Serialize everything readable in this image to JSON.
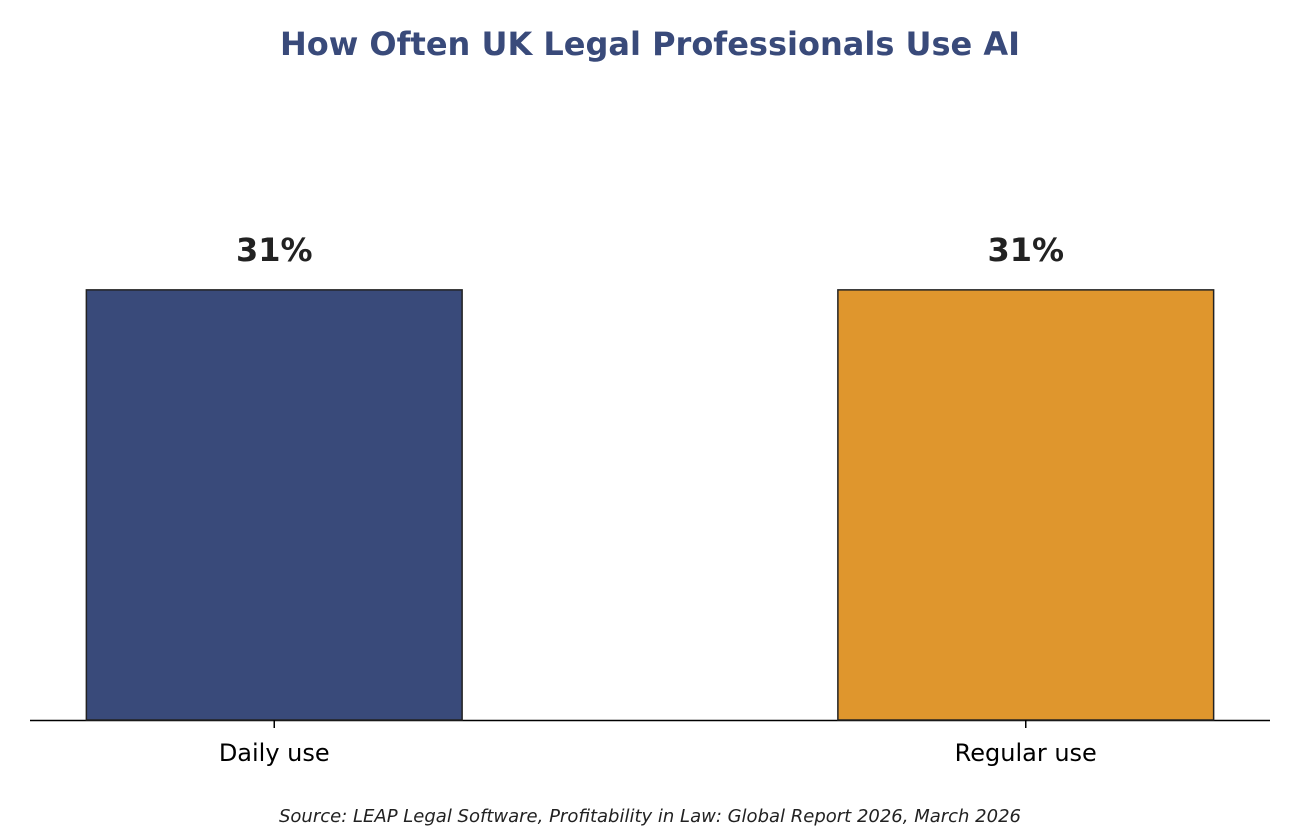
{
  "chart_data": {
    "type": "bar",
    "title": "How Often UK Legal Professionals Use AI",
    "categories": [
      "Daily use",
      "Regular use"
    ],
    "values": [
      31,
      31
    ],
    "value_labels": [
      "31%",
      "31%"
    ],
    "colors": [
      "#394a7a",
      "#df962d"
    ],
    "ylim": [
      0,
      40
    ],
    "source": "Source: LEAP Legal Software, Profitability in Law: Global Report 2026, March 2026"
  }
}
